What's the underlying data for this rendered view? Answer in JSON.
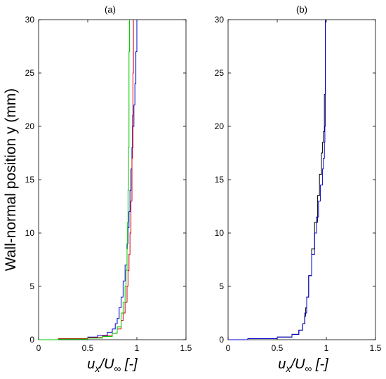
{
  "chart_data": [
    {
      "type": "line",
      "title": "(a)",
      "xlabel": "u_x/U_∞ [-]",
      "ylabel": "Wall-normal position y (mm)",
      "xlim": [
        0,
        1.5
      ],
      "ylim": [
        0,
        30
      ],
      "xticks": [
        "0",
        "0.5",
        "1",
        "1.5"
      ],
      "yticks": [
        "0",
        "5",
        "10",
        "15",
        "20",
        "25",
        "30"
      ],
      "series": [
        {
          "color": "#0000cc",
          "x": [
            0,
            0.2,
            0.5,
            0.6,
            0.7,
            0.75,
            0.78,
            0.8,
            0.82,
            0.84,
            0.86,
            0.88,
            0.9,
            0.91,
            0.92,
            0.93,
            0.94,
            0.95,
            0.96,
            0.97,
            0.98,
            0.99,
            1.0
          ],
          "y": [
            0,
            0.1,
            0.25,
            0.4,
            0.7,
            1.0,
            1.5,
            2.0,
            3.0,
            4.0,
            5.5,
            7.0,
            9.0,
            10.5,
            12.0,
            14.0,
            16.0,
            18.0,
            20.0,
            22.0,
            24.0,
            27.0,
            30.0
          ]
        },
        {
          "color": "#cc0000",
          "x": [
            0,
            0.2,
            0.5,
            0.65,
            0.75,
            0.8,
            0.84,
            0.86,
            0.88,
            0.9,
            0.91,
            0.92,
            0.93,
            0.94,
            0.95,
            0.955,
            0.96,
            0.965
          ],
          "y": [
            0,
            0.1,
            0.2,
            0.35,
            0.6,
            1.0,
            1.8,
            2.5,
            3.5,
            5.0,
            6.5,
            8.0,
            10.0,
            13.0,
            17.0,
            21.0,
            25.0,
            30.0
          ]
        },
        {
          "color": "#00cc00",
          "x": [
            0,
            0.2,
            0.5,
            0.65,
            0.75,
            0.8,
            0.84,
            0.86,
            0.88,
            0.89,
            0.9,
            0.905,
            0.91,
            0.915,
            0.92,
            0.92,
            0.925
          ],
          "y": [
            0,
            0.05,
            0.15,
            0.3,
            0.6,
            1.2,
            2.5,
            3.5,
            5.0,
            6.5,
            8.5,
            11.0,
            14.0,
            18.0,
            22.0,
            27.0,
            30.0
          ]
        }
      ]
    },
    {
      "type": "line",
      "title": "(b)",
      "xlabel": "u_x/U_∞ [-]",
      "ylabel": "",
      "xlim": [
        0,
        1.5
      ],
      "ylim": [
        0,
        30
      ],
      "xticks": [
        "0",
        "0.5",
        "1",
        "1.5"
      ],
      "yticks": [
        "0",
        "5",
        "10",
        "15",
        "20",
        "25",
        "30"
      ],
      "series": [
        {
          "color": "#000000",
          "x": [
            0,
            0.2,
            0.5,
            0.65,
            0.72,
            0.76,
            0.78,
            0.79,
            0.8,
            0.82,
            0.85,
            0.88,
            0.91,
            0.93,
            0.95,
            0.96,
            0.97,
            0.98,
            0.98,
            0.99,
            0.99
          ],
          "y": [
            0,
            0.1,
            0.25,
            0.5,
            0.9,
            1.5,
            2.2,
            3.0,
            4.0,
            6.0,
            8.5,
            11.0,
            13.5,
            15.5,
            17.5,
            18.5,
            19.5,
            20.5,
            23.0,
            27.0,
            30.0
          ]
        },
        {
          "color": "#0000cc",
          "x": [
            0,
            0.2,
            0.5,
            0.65,
            0.72,
            0.76,
            0.78,
            0.8,
            0.82,
            0.85,
            0.88,
            0.9,
            0.92,
            0.94,
            0.96,
            0.97,
            0.98,
            0.985,
            0.99,
            0.99
          ],
          "y": [
            0,
            0.1,
            0.25,
            0.5,
            0.9,
            1.5,
            2.5,
            4.0,
            6.0,
            8.0,
            10.0,
            11.5,
            13.0,
            14.5,
            16.0,
            17.0,
            18.5,
            20.0,
            24.0,
            30.0
          ]
        }
      ]
    }
  ]
}
